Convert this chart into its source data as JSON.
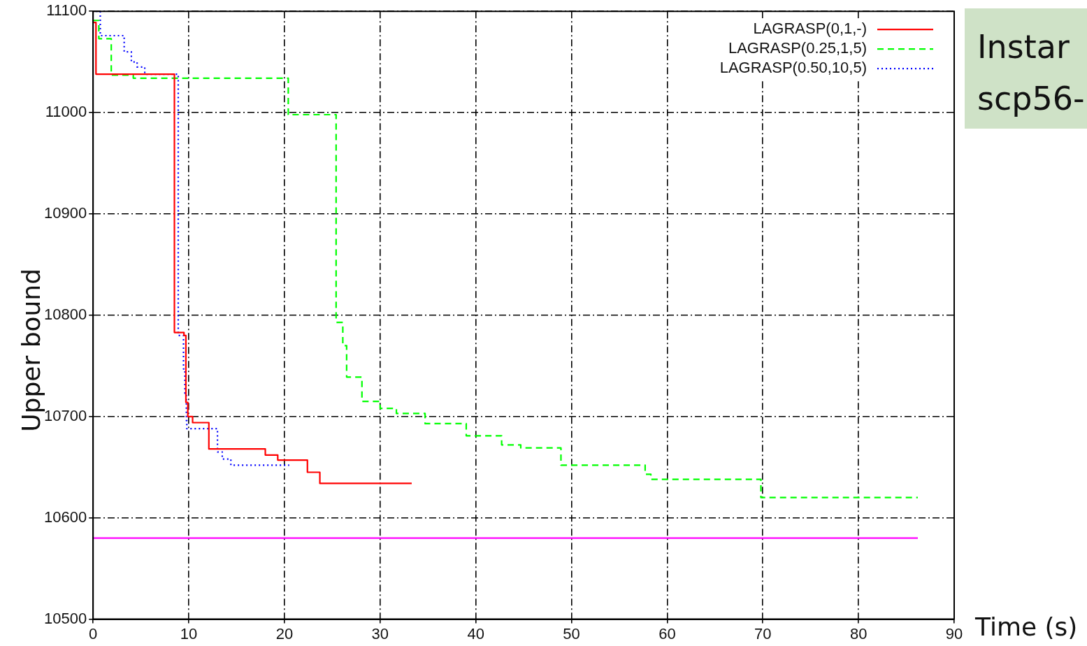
{
  "chart_data": {
    "type": "step",
    "xlabel": "Time (s)",
    "ylabel": "Upper bound",
    "annotations": [
      "Instar",
      "scp56-"
    ],
    "xlim": [
      0,
      90
    ],
    "xticks": [
      0,
      10,
      20,
      30,
      40,
      50,
      60,
      70,
      80,
      90
    ],
    "ylim": [
      10500,
      11100
    ],
    "yticks": [
      10500,
      10600,
      10700,
      10800,
      10900,
      11000,
      11100
    ],
    "grid": true,
    "legend": "top right",
    "marker": "none",
    "series": [
      {
        "name": "LAGRASP(0,1,-)",
        "color": "#ff0000",
        "line_style": "solid",
        "x": [
          0,
          0.3,
          8.5,
          9.5,
          9.7,
          9.9,
          10.4,
          12.1,
          18.0,
          19.3,
          22.4,
          23.7,
          33.3
        ],
        "values": [
          11089,
          11038,
          10783,
          10780,
          10714,
          10700,
          10694,
          10668,
          10662,
          10657,
          10645,
          10634,
          10634
        ]
      },
      {
        "name": "LAGRASP(0.25,1,5)",
        "color": "#00ff00",
        "line_style": "dashed",
        "x": [
          0,
          0.6,
          1.9,
          4.2,
          19.7,
          20.4,
          25.1,
          25.4,
          26.1,
          26.5,
          28.1,
          30.0,
          31.7,
          34.7,
          39.0,
          42.7,
          44.7,
          48.9,
          57.7,
          58.3,
          69.8,
          86.2
        ],
        "values": [
          11091,
          11073,
          11037,
          11034,
          11034,
          10998,
          10998,
          10793,
          10770,
          10739,
          10715,
          10708,
          10703,
          10693,
          10681,
          10672,
          10669,
          10652,
          10643,
          10638,
          10620,
          10620
        ]
      },
      {
        "name": "LAGRASP(0.50,10,5)",
        "color": "#0000ff",
        "line_style": "dotted",
        "x": [
          0.3,
          0.75,
          3.25,
          4.0,
          4.6,
          5.4,
          8.9,
          9.45,
          9.6,
          9.75,
          9.8,
          13.0,
          13.5,
          14.4,
          20.5
        ],
        "values": [
          11100,
          11076,
          11060,
          11050,
          11045,
          11038,
          10780,
          10747,
          10723,
          10696,
          10688,
          10665,
          10658,
          10652,
          10652
        ]
      },
      {
        "color": "#ff00ff",
        "line_style": "solid",
        "x": [
          0,
          86.2
        ],
        "values": [
          10580,
          10580
        ]
      }
    ]
  }
}
